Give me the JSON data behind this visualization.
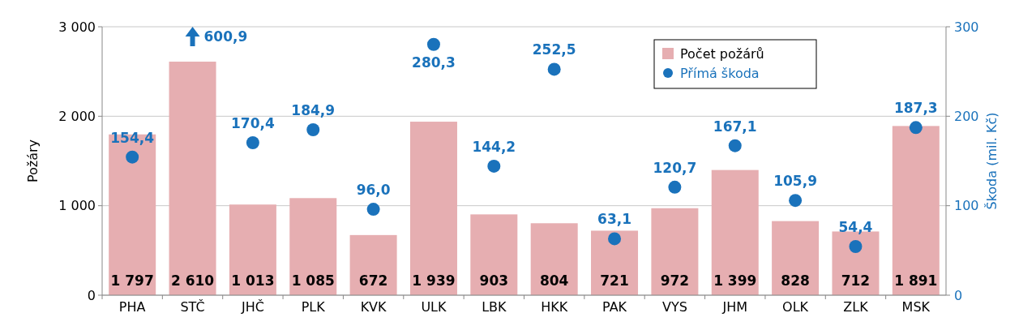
{
  "chart_data": {
    "type": "bar",
    "categories": [
      "PHA",
      "STČ",
      "JHČ",
      "PLK",
      "KVK",
      "ULK",
      "LBK",
      "HKK",
      "PAK",
      "VYS",
      "JHM",
      "OLK",
      "ZLK",
      "MSK"
    ],
    "series": [
      {
        "name": "Počet požárů",
        "color": "#e6aeb1",
        "values": [
          1797,
          2610,
          1013,
          1085,
          672,
          1939,
          903,
          804,
          721,
          972,
          1399,
          828,
          712,
          1891
        ],
        "value_labels": [
          "1 797",
          "2 610",
          "1 013",
          "1 085",
          "672",
          "1 939",
          "903",
          "804",
          "721",
          "972",
          "1 399",
          "828",
          "712",
          "1 891"
        ]
      },
      {
        "name": "Přímá škoda",
        "type": "scatter",
        "axis": "y2",
        "color": "#1a72bb",
        "marker": "circle",
        "values": [
          154.4,
          null,
          170.4,
          184.9,
          96.0,
          280.3,
          144.2,
          252.5,
          63.1,
          120.7,
          167.1,
          105.9,
          54.4,
          187.3
        ],
        "value_labels": [
          "154,4",
          null,
          "170,4",
          "184,9",
          "96,0",
          "280,3",
          "144,2",
          "252,5",
          "63,1",
          "120,7",
          "167,1",
          "105,9",
          "54,4",
          "187,3"
        ]
      }
    ],
    "annotations": [
      "600,9"
    ],
    "ylabel": "Požáry",
    "y2label": "Škoda (mil. Kč)",
    "ylim": [
      0,
      3000
    ],
    "yticks": [
      0,
      {
        "value": 1000,
        "label": "1 000"
      },
      {
        "value": 2000,
        "label": "2 000"
      },
      {
        "value": 3000,
        "label": "3 000"
      }
    ],
    "y2lim": [
      0,
      300
    ],
    "y2ticks": [
      0,
      100,
      200,
      300
    ],
    "grid": "y",
    "legend": "top right"
  }
}
